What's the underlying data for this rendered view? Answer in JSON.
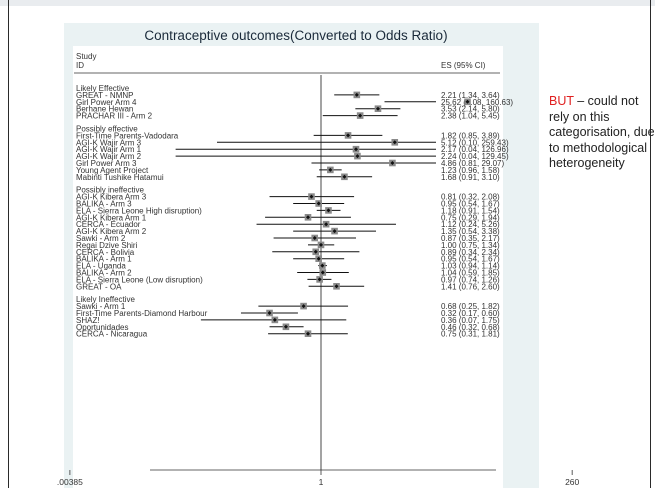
{
  "side_note": {
    "highlight": "BUT",
    "text": " – could not rely on this categorisation, due to methodological heterogeneity"
  },
  "chart_data": {
    "type": "forest",
    "title": "Contraceptive outcomes(Converted to Odds Ratio)",
    "study_header": [
      "Study",
      "ID"
    ],
    "es_header": "ES (95% CI)",
    "x_scale": "log",
    "x_ticks": [
      ".00385",
      "1",
      "260"
    ],
    "null_line": 1,
    "groups": [
      {
        "name": "Likely Effective",
        "studies": [
          {
            "label": "GREAT - NMNP",
            "es": 2.21,
            "lo": 1.34,
            "hi": 3.64,
            "text": "2.21 (1.34, 3.64)"
          },
          {
            "label": "Girl Power Arm 4",
            "es": 25.62,
            "lo": 4.08,
            "hi": 160.63,
            "text": "25.62 (4.08, 160.63)"
          },
          {
            "label": "Berhane Hewan",
            "es": 3.53,
            "lo": 2.14,
            "hi": 5.8,
            "text": "3.53 (2.14, 5.80)"
          },
          {
            "label": "PRACHAR III - Arm 2",
            "es": 2.38,
            "lo": 1.04,
            "hi": 5.45,
            "text": "2.38 (1.04, 5.45)"
          }
        ]
      },
      {
        "name": "Possibly effective",
        "studies": [
          {
            "label": "First-Time Parents-Vadodara",
            "es": 1.82,
            "lo": 0.85,
            "hi": 3.89,
            "text": "1.82 (0.85, 3.89)"
          },
          {
            "label": "AGI-K Wajir Arm 3",
            "es": 5.12,
            "lo": 0.1,
            "hi": 259.43,
            "text": "5.12 (0.10, 259.43)"
          },
          {
            "label": "AGI-K Wajir Arm 1",
            "es": 2.17,
            "lo": 0.04,
            "hi": 126.96,
            "text": "2.17 (0.04, 126.96)"
          },
          {
            "label": "AGI-K Wajir Arm 2",
            "es": 2.24,
            "lo": 0.04,
            "hi": 129.45,
            "text": "2.24 (0.04, 129.45)"
          },
          {
            "label": "Girl Power Arm 3",
            "es": 4.86,
            "lo": 0.81,
            "hi": 29.07,
            "text": "4.86 (0.81, 29.07)"
          },
          {
            "label": "Young Agent Project",
            "es": 1.23,
            "lo": 0.96,
            "hi": 1.58,
            "text": "1.23 (0.96, 1.58)"
          },
          {
            "label": "Mabinti Tushike Hatamui",
            "es": 1.68,
            "lo": 0.91,
            "hi": 3.1,
            "text": "1.68 (0.91, 3.10)"
          }
        ]
      },
      {
        "name": "Possibly ineffective",
        "studies": [
          {
            "label": "AGI-K Kibera Arm 3",
            "es": 0.81,
            "lo": 0.32,
            "hi": 2.08,
            "text": "0.81 (0.32, 2.08)"
          },
          {
            "label": "BALIKA - Arm 3",
            "es": 0.95,
            "lo": 0.54,
            "hi": 1.67,
            "text": "0.95 (0.54, 1.67)"
          },
          {
            "label": "ELA - Sierra Leone High disruption)",
            "es": 1.18,
            "lo": 0.91,
            "hi": 1.54,
            "text": "1.18 (0.91, 1.54)"
          },
          {
            "label": "AGI-K Kibera Arm 1",
            "es": 0.75,
            "lo": 0.29,
            "hi": 1.94,
            "text": "0.75 (0.29, 1.94)"
          },
          {
            "label": "CERCA - Ecuador",
            "es": 1.12,
            "lo": 0.24,
            "hi": 5.26,
            "text": "1.12 (0.24, 5.26)"
          },
          {
            "label": "AGI-K Kibera Arm 2",
            "es": 1.35,
            "lo": 0.54,
            "hi": 3.38,
            "text": "1.35 (0.54, 3.38)"
          },
          {
            "label": "Sawki - Arm 2",
            "es": 0.87,
            "lo": 0.35,
            "hi": 2.17,
            "text": "0.87 (0.35, 2.17)"
          },
          {
            "label": "Regai Dzive Shiri",
            "es": 1.0,
            "lo": 0.75,
            "hi": 1.34,
            "text": "1.00 (0.75, 1.34)"
          },
          {
            "label": "CERCA - Bolivia",
            "es": 0.89,
            "lo": 0.34,
            "hi": 2.34,
            "text": "0.89 (0.34, 2.34)"
          },
          {
            "label": "BALIKA - Arm 1",
            "es": 0.95,
            "lo": 0.54,
            "hi": 1.67,
            "text": "0.95 (0.54, 1.67)"
          },
          {
            "label": "ELA - Uganda",
            "es": 1.03,
            "lo": 0.94,
            "hi": 1.14,
            "text": "1.03 (0.94, 1.14)"
          },
          {
            "label": "BALIKA - Arm 2",
            "es": 1.04,
            "lo": 0.59,
            "hi": 1.85,
            "text": "1.04 (0.59, 1.85)"
          },
          {
            "label": "ELA - Sierra Leone (Low disruption)",
            "es": 0.97,
            "lo": 0.74,
            "hi": 1.26,
            "text": "0.97 (0.74, 1.26)"
          },
          {
            "label": "GREAT - OA",
            "es": 1.41,
            "lo": 0.76,
            "hi": 2.6,
            "text": "1.41 (0.76, 2.60)"
          }
        ]
      },
      {
        "name": "Likely Ineffective",
        "studies": [
          {
            "label": "Sawki - Arm 1",
            "es": 0.68,
            "lo": 0.25,
            "hi": 1.82,
            "text": "0.68 (0.25, 1.82)"
          },
          {
            "label": "First-Time Parents-Diamond Harbour",
            "es": 0.32,
            "lo": 0.17,
            "hi": 0.6,
            "text": "0.32 (0.17, 0.60)"
          },
          {
            "label": "SHAZ!",
            "es": 0.36,
            "lo": 0.07,
            "hi": 1.75,
            "text": "0.36 (0.07, 1.75)"
          },
          {
            "label": "Oportunidades",
            "es": 0.46,
            "lo": 0.32,
            "hi": 0.68,
            "text": "0.46 (0.32, 0.68)"
          },
          {
            "label": "CERCA - Nicaragua",
            "es": 0.75,
            "lo": 0.31,
            "hi": 1.81,
            "text": "0.75 (0.31, 1.81)"
          }
        ]
      }
    ]
  }
}
